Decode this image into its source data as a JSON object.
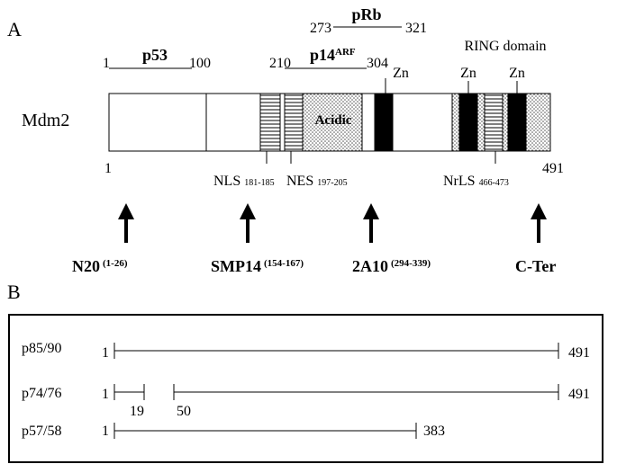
{
  "panel_a": {
    "label": "A",
    "protein_name": "Mdm2",
    "start_residue": "1",
    "end_residue": "491",
    "binding_regions": {
      "p53": {
        "name": "p53",
        "start": "1",
        "end": "100"
      },
      "prb": {
        "name": "pRb",
        "start": "273",
        "end": "321"
      },
      "p14arf": {
        "name": "p14",
        "superscript": "ARF",
        "start": "210",
        "end": "304"
      }
    },
    "ring_domain_label": "RING domain",
    "zinc_label": "Zn",
    "acidic_label": "Acidic",
    "signals": {
      "nls": {
        "name": "NLS",
        "range": "181-185"
      },
      "nes": {
        "name": "NES",
        "range": "197-205"
      },
      "nrls": {
        "name": "NrLS",
        "range": "466-473"
      }
    },
    "antibodies": [
      {
        "name": "N20",
        "epitope": "(1-26)"
      },
      {
        "name": "SMP14",
        "epitope": "(154-167)"
      },
      {
        "name": "2A10",
        "epitope": "(294-339)"
      },
      {
        "name": "C-Ter",
        "epitope": ""
      }
    ]
  },
  "panel_b": {
    "label": "B",
    "isoforms": [
      {
        "name": "p85/90",
        "start": "1",
        "end": "491"
      },
      {
        "name": "p74/76",
        "start": "1",
        "end": "491",
        "gap_start": "19",
        "gap_end": "50"
      },
      {
        "name": "p57/58",
        "start": "1",
        "end": "383"
      }
    ]
  },
  "colors": {
    "ink": "#000000",
    "background": "#ffffff",
    "dotted_fill": "#d9d9d9"
  }
}
